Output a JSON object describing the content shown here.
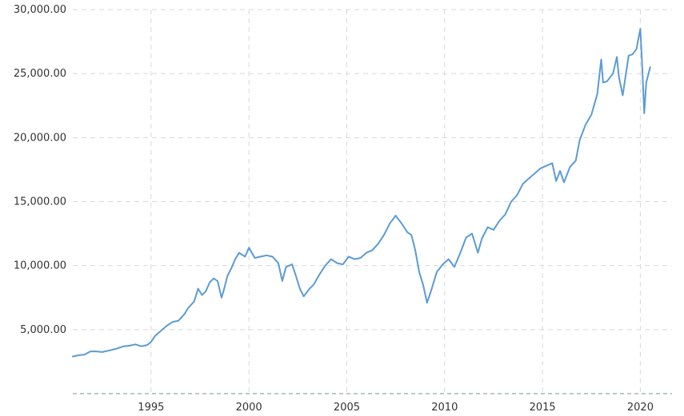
{
  "chart_data": {
    "type": "line",
    "title": "",
    "xlabel": "",
    "ylabel": "",
    "xlim": [
      1991.0,
      2020.8
    ],
    "ylim": [
      0,
      30000
    ],
    "grid": true,
    "legend": "none",
    "y_ticks": [
      {
        "value": 5000,
        "label": "5,000.00"
      },
      {
        "value": 10000,
        "label": "10,000.00"
      },
      {
        "value": 15000,
        "label": "15,000.00"
      },
      {
        "value": 20000,
        "label": "20,000.00"
      },
      {
        "value": 25000,
        "label": "25,000.00"
      },
      {
        "value": 30000,
        "label": "30,000.00"
      }
    ],
    "x_ticks": [
      {
        "value": 1995,
        "label": "1995"
      },
      {
        "value": 2000,
        "label": "2000"
      },
      {
        "value": 2005,
        "label": "2005"
      },
      {
        "value": 2010,
        "label": "2010"
      },
      {
        "value": 2015,
        "label": "2015"
      },
      {
        "value": 2020,
        "label": "2020"
      }
    ],
    "series": [
      {
        "color": "#5b9bd5",
        "x": [
          1991.0,
          1991.3,
          1991.6,
          1991.9,
          1992.2,
          1992.5,
          1992.8,
          1993.2,
          1993.6,
          1993.9,
          1994.2,
          1994.5,
          1994.8,
          1995.0,
          1995.2,
          1995.5,
          1995.8,
          1996.1,
          1996.4,
          1996.7,
          1996.9,
          1997.2,
          1997.4,
          1997.6,
          1997.8,
          1998.0,
          1998.2,
          1998.4,
          1998.6,
          1998.7,
          1998.9,
          1999.1,
          1999.3,
          1999.5,
          1999.8,
          2000.0,
          2000.3,
          2000.6,
          2000.9,
          2001.2,
          2001.5,
          2001.7,
          2001.9,
          2002.2,
          2002.4,
          2002.6,
          2002.8,
          2003.1,
          2003.3,
          2003.6,
          2003.9,
          2004.2,
          2004.5,
          2004.8,
          2005.1,
          2005.4,
          2005.7,
          2006.0,
          2006.3,
          2006.6,
          2006.9,
          2007.2,
          2007.5,
          2007.8,
          2008.1,
          2008.3,
          2008.5,
          2008.7,
          2008.9,
          2009.1,
          2009.3,
          2009.6,
          2009.9,
          2010.2,
          2010.5,
          2010.8,
          2011.1,
          2011.4,
          2011.7,
          2011.9,
          2012.2,
          2012.5,
          2012.8,
          2013.1,
          2013.4,
          2013.7,
          2014.0,
          2014.3,
          2014.6,
          2014.9,
          2015.2,
          2015.5,
          2015.7,
          2015.9,
          2016.1,
          2016.4,
          2016.7,
          2016.9,
          2017.2,
          2017.5,
          2017.8,
          2018.0,
          2018.1,
          2018.3,
          2018.6,
          2018.8,
          2018.9,
          2019.1,
          2019.4,
          2019.6,
          2019.8,
          2020.0,
          2020.1,
          2020.2,
          2020.3,
          2020.5
        ],
        "y": [
          2900,
          3000,
          3050,
          3300,
          3300,
          3250,
          3350,
          3500,
          3700,
          3750,
          3850,
          3700,
          3800,
          4050,
          4500,
          4900,
          5300,
          5600,
          5700,
          6200,
          6700,
          7200,
          8200,
          7700,
          8000,
          8700,
          9000,
          8800,
          7500,
          8000,
          9200,
          9800,
          10500,
          11000,
          10700,
          11400,
          10600,
          10700,
          10800,
          10700,
          10200,
          8800,
          9900,
          10100,
          9200,
          8200,
          7600,
          8200,
          8500,
          9300,
          10000,
          10500,
          10200,
          10100,
          10700,
          10500,
          10600,
          11000,
          11200,
          11700,
          12400,
          13300,
          13900,
          13300,
          12600,
          12400,
          11200,
          9500,
          8500,
          7100,
          8000,
          9500,
          10100,
          10500,
          9900,
          11000,
          12200,
          12500,
          11000,
          12100,
          13000,
          12800,
          13500,
          14000,
          15000,
          15500,
          16400,
          16800,
          17200,
          17600,
          17800,
          18000,
          16600,
          17400,
          16500,
          17700,
          18200,
          19800,
          21000,
          21800,
          23400,
          26100,
          24300,
          24400,
          25000,
          26300,
          24800,
          23300,
          26400,
          26500,
          26900,
          28500,
          25400,
          21900,
          24300,
          25500
        ]
      }
    ]
  }
}
